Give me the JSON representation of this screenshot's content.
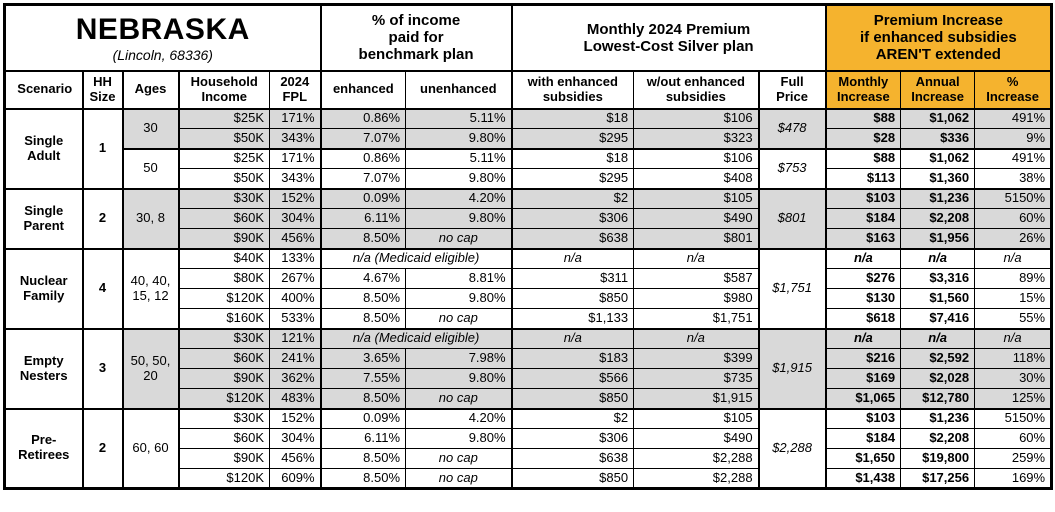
{
  "colors": {
    "accent_orange": "#F5B32E",
    "row_shading_gray": "#D9D9D9",
    "border_black": "#000000"
  },
  "chart_data": {
    "type": "table",
    "title": "NEBRASKA",
    "subtitle": "(Lincoln, 68336)",
    "column_groups": [
      "% of income\npaid for\nbenchmark plan",
      "Monthly 2024 Premium\nLowest-Cost Silver plan",
      "Premium Increase\nif enhanced subsidies\nAREN'T extended"
    ],
    "columns": [
      "Scenario",
      "HH\nSize",
      "Ages",
      "Household\nIncome",
      "2024\nFPL",
      "enhanced",
      "unenhanced",
      "with enhanced\nsubsidies",
      "w/out enhanced\nsubsidies",
      "Full\nPrice",
      "Monthly\nIncrease",
      "Annual\nIncrease",
      "%\nIncrease"
    ],
    "na_benchmark_label": "n/a (Medicaid eligible)",
    "na_label": "n/a",
    "no_cap_label": "no cap",
    "groups": [
      {
        "scenario": "Single\nAdult",
        "hh_size": "1",
        "subgroups": [
          {
            "ages": "30",
            "shaded": true,
            "full_price": "$478",
            "rows": [
              {
                "income": "$25K",
                "fpl": "171%",
                "enhanced": "0.86%",
                "unenhanced": "5.11%",
                "with_sub": "$18",
                "wout_sub": "$106",
                "monthly": "$88",
                "annual": "$1,062",
                "pct": "491%"
              },
              {
                "income": "$50K",
                "fpl": "343%",
                "enhanced": "7.07%",
                "unenhanced": "9.80%",
                "with_sub": "$295",
                "wout_sub": "$323",
                "monthly": "$28",
                "annual": "$336",
                "pct": "9%"
              }
            ]
          },
          {
            "ages": "50",
            "shaded": false,
            "full_price": "$753",
            "rows": [
              {
                "income": "$25K",
                "fpl": "171%",
                "enhanced": "0.86%",
                "unenhanced": "5.11%",
                "with_sub": "$18",
                "wout_sub": "$106",
                "monthly": "$88",
                "annual": "$1,062",
                "pct": "491%"
              },
              {
                "income": "$50K",
                "fpl": "343%",
                "enhanced": "7.07%",
                "unenhanced": "9.80%",
                "with_sub": "$295",
                "wout_sub": "$408",
                "monthly": "$113",
                "annual": "$1,360",
                "pct": "38%"
              }
            ]
          }
        ]
      },
      {
        "scenario": "Single\nParent",
        "hh_size": "2",
        "subgroups": [
          {
            "ages": "30, 8",
            "shaded": true,
            "full_price": "$801",
            "rows": [
              {
                "income": "$30K",
                "fpl": "152%",
                "enhanced": "0.09%",
                "unenhanced": "4.20%",
                "with_sub": "$2",
                "wout_sub": "$105",
                "monthly": "$103",
                "annual": "$1,236",
                "pct": "5150%"
              },
              {
                "income": "$60K",
                "fpl": "304%",
                "enhanced": "6.11%",
                "unenhanced": "9.80%",
                "with_sub": "$306",
                "wout_sub": "$490",
                "monthly": "$184",
                "annual": "$2,208",
                "pct": "60%"
              },
              {
                "income": "$90K",
                "fpl": "456%",
                "enhanced": "8.50%",
                "unenhanced": "no cap",
                "with_sub": "$638",
                "wout_sub": "$801",
                "monthly": "$163",
                "annual": "$1,956",
                "pct": "26%"
              }
            ]
          }
        ]
      },
      {
        "scenario": "Nuclear\nFamily",
        "hh_size": "4",
        "subgroups": [
          {
            "ages": "40, 40,\n15, 12",
            "shaded": false,
            "full_price": "$1,751",
            "rows": [
              {
                "income": "$40K",
                "fpl": "133%",
                "medicaid": true,
                "with_sub": "n/a",
                "wout_sub": "n/a",
                "monthly": "n/a",
                "annual": "n/a",
                "pct": "n/a"
              },
              {
                "income": "$80K",
                "fpl": "267%",
                "enhanced": "4.67%",
                "unenhanced": "8.81%",
                "with_sub": "$311",
                "wout_sub": "$587",
                "monthly": "$276",
                "annual": "$3,316",
                "pct": "89%"
              },
              {
                "income": "$120K",
                "fpl": "400%",
                "enhanced": "8.50%",
                "unenhanced": "9.80%",
                "with_sub": "$850",
                "wout_sub": "$980",
                "monthly": "$130",
                "annual": "$1,560",
                "pct": "15%"
              },
              {
                "income": "$160K",
                "fpl": "533%",
                "enhanced": "8.50%",
                "unenhanced": "no cap",
                "with_sub": "$1,133",
                "wout_sub": "$1,751",
                "monthly": "$618",
                "annual": "$7,416",
                "pct": "55%"
              }
            ]
          }
        ]
      },
      {
        "scenario": "Empty\nNesters",
        "hh_size": "3",
        "subgroups": [
          {
            "ages": "50, 50,\n20",
            "shaded": true,
            "full_price": "$1,915",
            "rows": [
              {
                "income": "$30K",
                "fpl": "121%",
                "medicaid": true,
                "with_sub": "n/a",
                "wout_sub": "n/a",
                "monthly": "n/a",
                "annual": "n/a",
                "pct": "n/a"
              },
              {
                "income": "$60K",
                "fpl": "241%",
                "enhanced": "3.65%",
                "unenhanced": "7.98%",
                "with_sub": "$183",
                "wout_sub": "$399",
                "monthly": "$216",
                "annual": "$2,592",
                "pct": "118%"
              },
              {
                "income": "$90K",
                "fpl": "362%",
                "enhanced": "7.55%",
                "unenhanced": "9.80%",
                "with_sub": "$566",
                "wout_sub": "$735",
                "monthly": "$169",
                "annual": "$2,028",
                "pct": "30%"
              },
              {
                "income": "$120K",
                "fpl": "483%",
                "enhanced": "8.50%",
                "unenhanced": "no cap",
                "with_sub": "$850",
                "wout_sub": "$1,915",
                "monthly": "$1,065",
                "annual": "$12,780",
                "pct": "125%"
              }
            ]
          }
        ]
      },
      {
        "scenario": "Pre-\nRetirees",
        "hh_size": "2",
        "subgroups": [
          {
            "ages": "60, 60",
            "shaded": false,
            "full_price": "$2,288",
            "rows": [
              {
                "income": "$30K",
                "fpl": "152%",
                "enhanced": "0.09%",
                "unenhanced": "4.20%",
                "with_sub": "$2",
                "wout_sub": "$105",
                "monthly": "$103",
                "annual": "$1,236",
                "pct": "5150%"
              },
              {
                "income": "$60K",
                "fpl": "304%",
                "enhanced": "6.11%",
                "unenhanced": "9.80%",
                "with_sub": "$306",
                "wout_sub": "$490",
                "monthly": "$184",
                "annual": "$2,208",
                "pct": "60%"
              },
              {
                "income": "$90K",
                "fpl": "456%",
                "enhanced": "8.50%",
                "unenhanced": "no cap",
                "with_sub": "$638",
                "wout_sub": "$2,288",
                "monthly": "$1,650",
                "annual": "$19,800",
                "pct": "259%"
              },
              {
                "income": "$120K",
                "fpl": "609%",
                "enhanced": "8.50%",
                "unenhanced": "no cap",
                "with_sub": "$850",
                "wout_sub": "$2,288",
                "monthly": "$1,438",
                "annual": "$17,256",
                "pct": "169%"
              }
            ]
          }
        ]
      }
    ]
  }
}
